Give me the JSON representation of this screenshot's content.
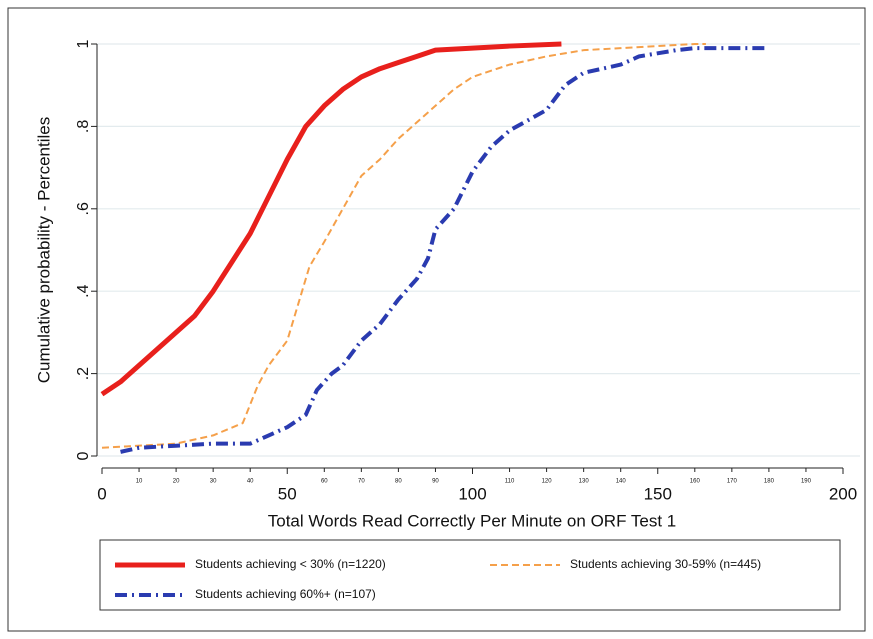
{
  "chart_data": {
    "type": "line",
    "y_label": "Cumulative probability - Percentiles",
    "x_label": "Total Words Read Correctly Per Minute on ORF Test 1",
    "xlim": [
      0,
      200
    ],
    "ylim": [
      0,
      1
    ],
    "xticks": [
      0,
      50,
      100,
      150,
      200
    ],
    "xticks_minor": [
      10,
      20,
      30,
      40,
      60,
      70,
      80,
      90,
      110,
      120,
      130,
      140,
      160,
      170,
      180,
      190
    ],
    "yticks": [
      0,
      {
        "value": 0.2,
        "label": ".2"
      },
      {
        "value": 0.4,
        "label": ".4"
      },
      {
        "value": 0.6,
        "label": ".6"
      },
      {
        "value": 0.8,
        "label": ".8"
      },
      1
    ],
    "grid": true,
    "series": [
      {
        "name": "Students achieving < 30% (n=1220)",
        "color": "#e8201c",
        "style": "solid",
        "x": [
          0,
          5,
          10,
          15,
          20,
          25,
          30,
          35,
          40,
          45,
          50,
          55,
          60,
          65,
          70,
          75,
          80,
          85,
          90,
          100,
          110,
          124
        ],
        "values": [
          0.15,
          0.18,
          0.22,
          0.26,
          0.3,
          0.34,
          0.4,
          0.47,
          0.54,
          0.63,
          0.72,
          0.8,
          0.85,
          0.89,
          0.92,
          0.94,
          0.955,
          0.97,
          0.985,
          0.99,
          0.995,
          1
        ]
      },
      {
        "name": "Students achieving 30-59% (n=445)",
        "color": "#f5a04a",
        "style": "dash",
        "x": [
          0,
          20,
          30,
          38,
          42,
          45,
          50,
          53,
          56,
          60,
          65,
          70,
          75,
          80,
          85,
          90,
          95,
          100,
          110,
          120,
          130,
          140,
          160,
          163
        ],
        "values": [
          0.02,
          0.03,
          0.05,
          0.08,
          0.17,
          0.22,
          0.28,
          0.37,
          0.46,
          0.52,
          0.6,
          0.68,
          0.72,
          0.77,
          0.81,
          0.85,
          0.89,
          0.92,
          0.95,
          0.97,
          0.985,
          0.99,
          1,
          1
        ]
      },
      {
        "name": "Students achieving 60%+ (n=107)",
        "color": "#2a3bb0",
        "style": "dashdot",
        "x": [
          5,
          10,
          20,
          30,
          40,
          45,
          50,
          55,
          58,
          62,
          65,
          70,
          75,
          80,
          85,
          88,
          90,
          95,
          100,
          105,
          110,
          120,
          125,
          130,
          140,
          145,
          155,
          160,
          180
        ],
        "values": [
          0.01,
          0.02,
          0.025,
          0.03,
          0.03,
          0.05,
          0.07,
          0.1,
          0.16,
          0.2,
          0.22,
          0.28,
          0.32,
          0.38,
          0.43,
          0.48,
          0.55,
          0.6,
          0.69,
          0.75,
          0.79,
          0.84,
          0.9,
          0.93,
          0.95,
          0.97,
          0.985,
          0.99,
          0.99
        ]
      }
    ]
  }
}
